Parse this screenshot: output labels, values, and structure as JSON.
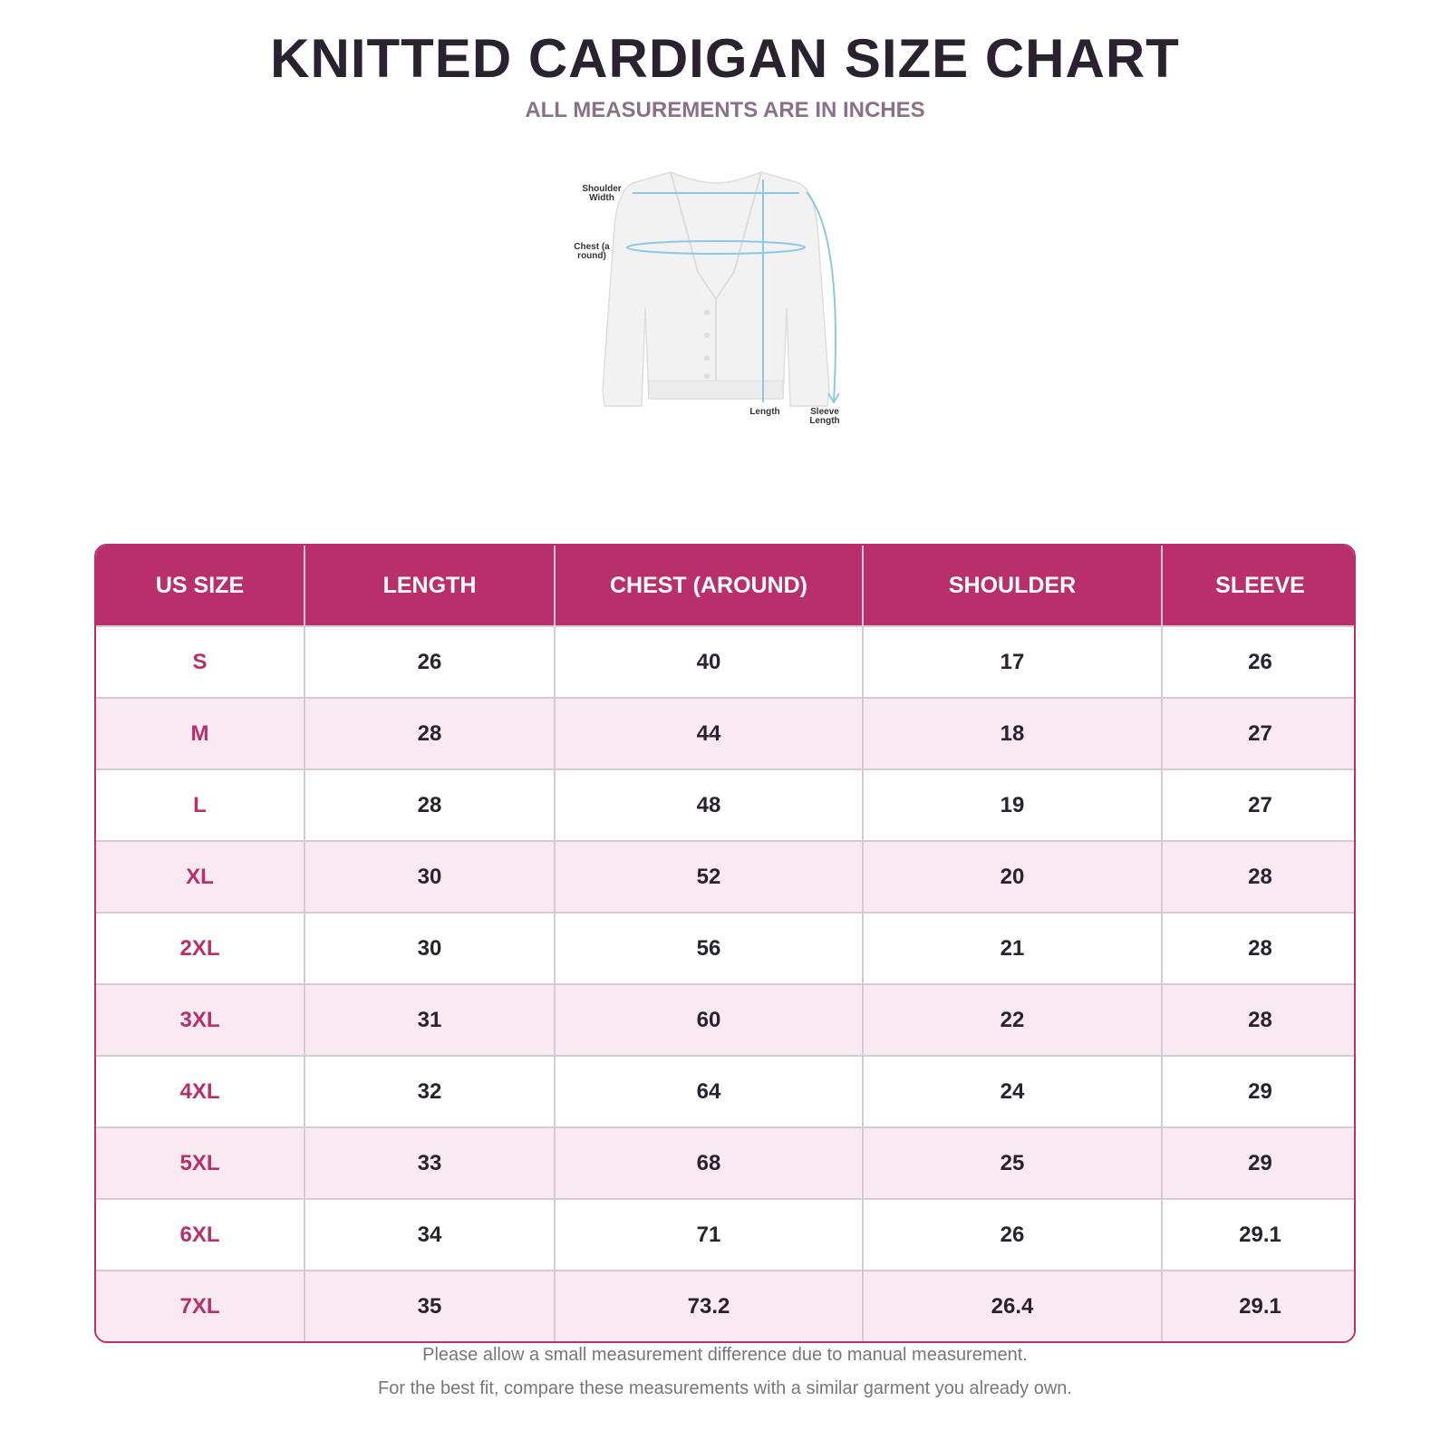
{
  "header": {
    "title": "KNITTED CARDIGAN SIZE CHART",
    "subtitle": "ALL MEASUREMENTS ARE IN INCHES"
  },
  "diagram": {
    "shoulder": "Shoulder Width",
    "chest": "Chest (a round)",
    "length": "Length",
    "sleeve": "Sleeve Length"
  },
  "table": {
    "columns": [
      "US SIZE",
      "LENGTH",
      "CHEST (AROUND)",
      "SHOULDER",
      "SLEEVE"
    ],
    "rows": [
      [
        "S",
        26,
        40,
        17,
        26
      ],
      [
        "M",
        28,
        44,
        18,
        27
      ],
      [
        "L",
        28,
        48,
        19,
        27
      ],
      [
        "XL",
        30,
        52,
        20,
        28
      ],
      [
        "2XL",
        30,
        56,
        21,
        28
      ],
      [
        "3XL",
        31,
        60,
        22,
        28
      ],
      [
        "4XL",
        32,
        64,
        24,
        29
      ],
      [
        "5XL",
        33,
        68,
        25,
        29
      ],
      [
        "6XL",
        34,
        71,
        26,
        29.1
      ],
      [
        "7XL",
        35,
        73.2,
        26.4,
        29.1
      ]
    ]
  },
  "footer": {
    "notes": [
      "Please allow a small measurement difference due to manual measurement.",
      "For the best fit, compare these measurements with a similar garment you already own."
    ]
  }
}
